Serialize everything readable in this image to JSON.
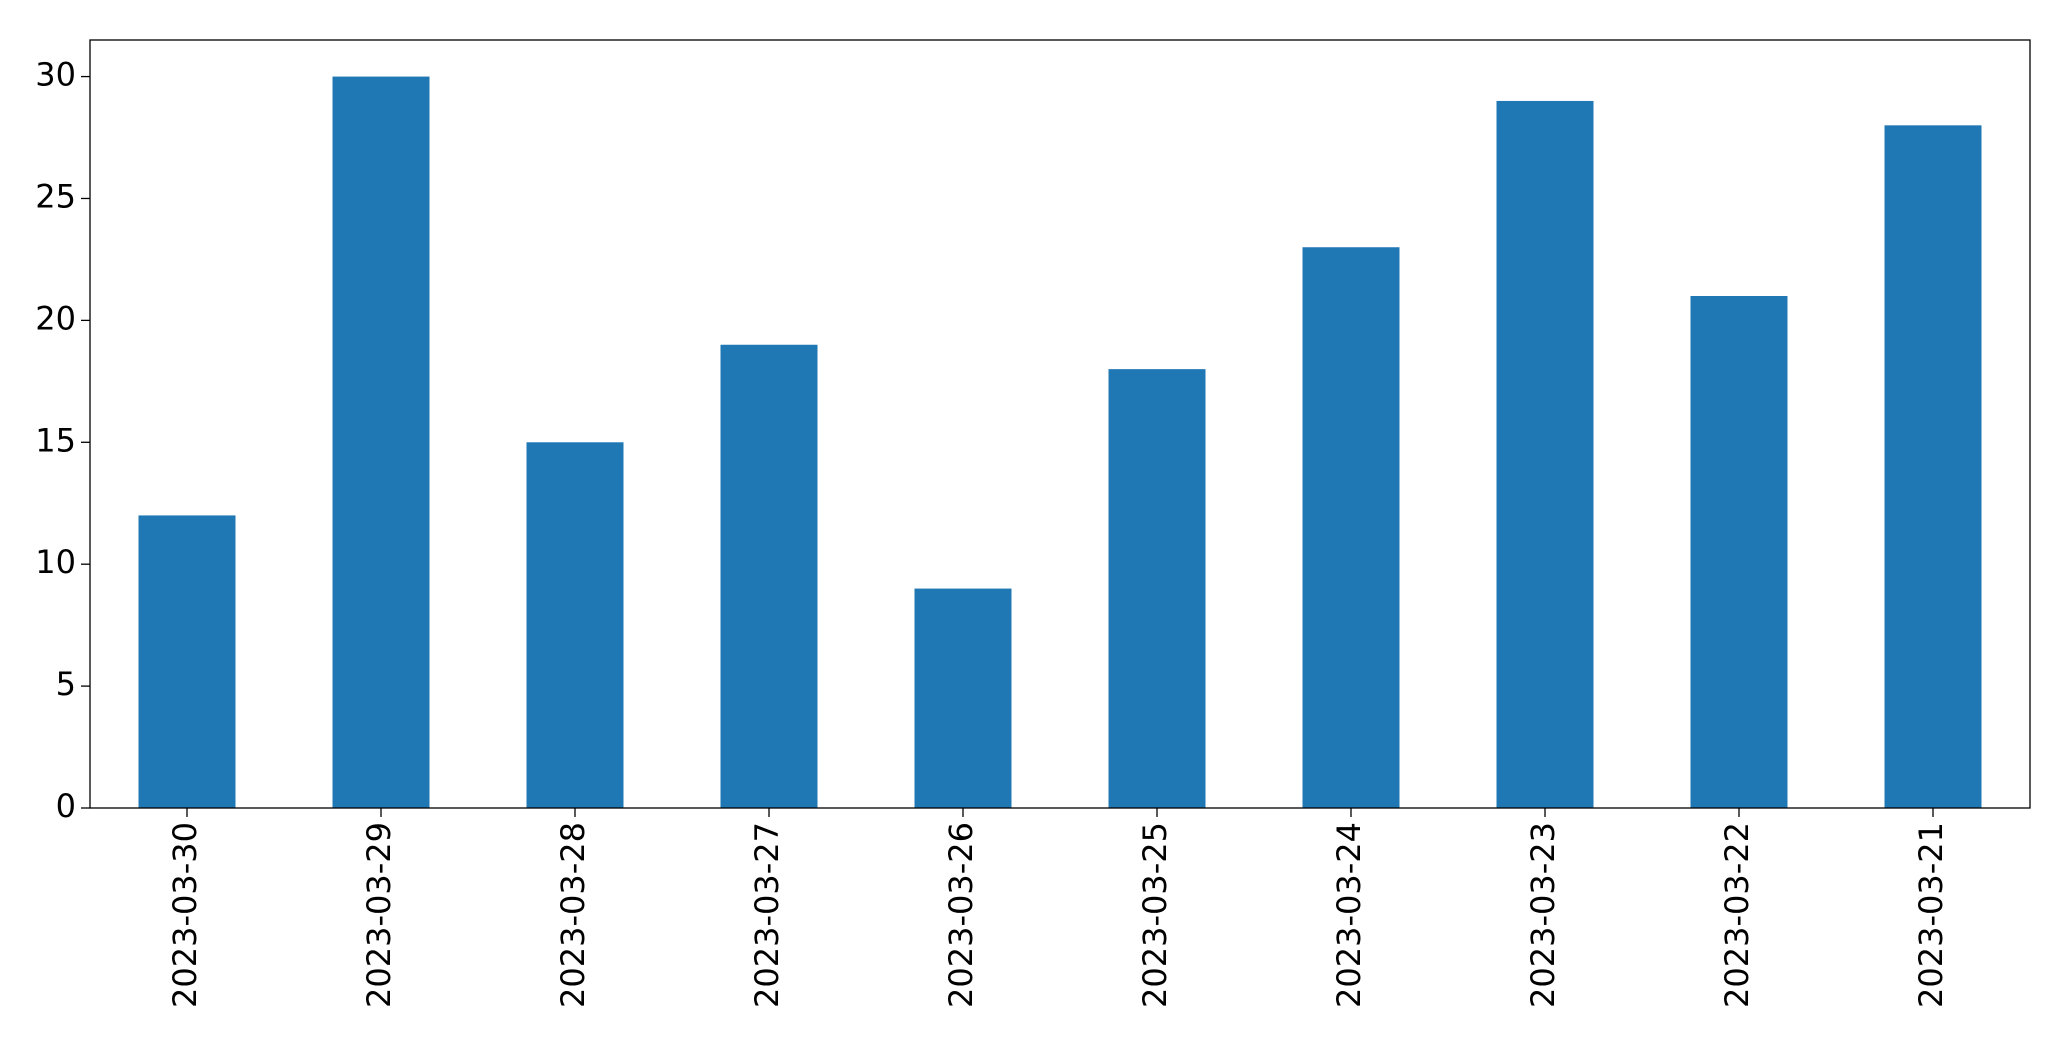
{
  "chart_data": {
    "type": "bar",
    "categories": [
      "2023-03-30",
      "2023-03-29",
      "2023-03-28",
      "2023-03-27",
      "2023-03-26",
      "2023-03-25",
      "2023-03-24",
      "2023-03-23",
      "2023-03-22",
      "2023-03-21"
    ],
    "values": [
      12,
      30,
      15,
      19,
      9,
      18,
      23,
      29,
      21,
      28
    ],
    "color": "#1f77b4",
    "ylim": [
      0,
      31.5
    ],
    "yticks": [
      0,
      5,
      10,
      15,
      20,
      25,
      30
    ],
    "grid": false
  }
}
